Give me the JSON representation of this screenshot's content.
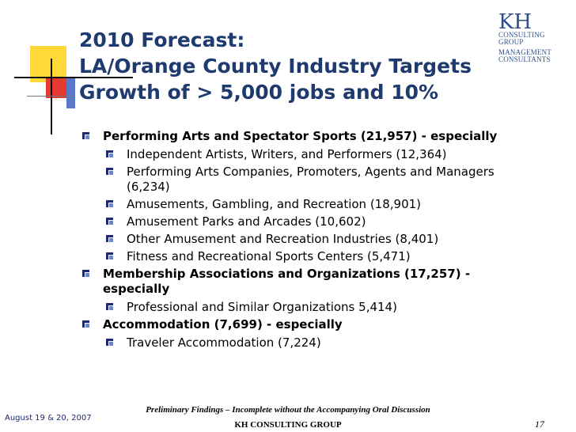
{
  "title": {
    "line1": "2010 Forecast:",
    "line2": "LA/Orange County Industry Targets",
    "line3": "Growth of > 5,000 jobs and 10%"
  },
  "logo": {
    "kh": "KH",
    "line1": "CONSULTING",
    "line2": "GROUP",
    "line3": "MANAGEMENT",
    "line4": "CONSULTANTS"
  },
  "bullets": {
    "b1": "Performing Arts and Spectator Sports (21,957) - especially",
    "b1_1": "Independent Artists, Writers, and Performers (12,364)",
    "b1_2": "Performing Arts Companies, Promoters, Agents and Managers (6,234)",
    "b1_3": "Amusements, Gambling, and Recreation (18,901)",
    "b1_4": "Amusement Parks and Arcades (10,602)",
    "b1_5": "Other Amusement and Recreation Industries (8,401)",
    "b1_6": "Fitness and Recreational Sports Centers (5,471)",
    "b2": "Membership Associations and Organizations (17,257) - especially",
    "b2_1": "Professional and Similar Organizations 5,414)",
    "b3": "Accommodation (7,699) - especially",
    "b3_1": "Traveler Accommodation (7,224)"
  },
  "footer": {
    "note": "Preliminary Findings – Incomplete without the Accompanying Oral Discussion",
    "org": "KH CONSULTING GROUP",
    "date": "August 19 & 20, 2007",
    "page": "17"
  },
  "colors": {
    "title": "#1f3a6e",
    "yellow": "#ffd83a",
    "red": "#e53a2f",
    "blue": "#5a78c8",
    "bullet": "#1f2a6e"
  }
}
